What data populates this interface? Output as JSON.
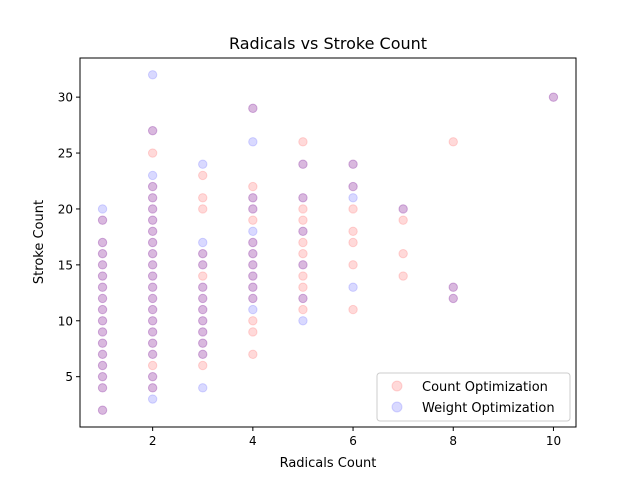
{
  "chart_data": {
    "type": "scatter",
    "title": "Radicals vs Stroke Count",
    "xlabel": "Radicals Count",
    "ylabel": "Stroke Count",
    "xlim": [
      0.55,
      10.45
    ],
    "ylim": [
      0.5,
      33.5
    ],
    "xticks": [
      2,
      4,
      6,
      8,
      10
    ],
    "yticks": [
      5,
      10,
      15,
      20,
      25,
      30
    ],
    "grid": false,
    "legend_position": "lower-right",
    "series": [
      {
        "name": "Count Optimization",
        "color": "#ff0000",
        "alpha": 0.15,
        "points": [
          [
            1,
            2
          ],
          [
            1,
            4
          ],
          [
            1,
            5
          ],
          [
            1,
            6
          ],
          [
            1,
            7
          ],
          [
            1,
            8
          ],
          [
            1,
            9
          ],
          [
            1,
            10
          ],
          [
            1,
            11
          ],
          [
            1,
            12
          ],
          [
            1,
            13
          ],
          [
            1,
            14
          ],
          [
            1,
            15
          ],
          [
            1,
            16
          ],
          [
            1,
            17
          ],
          [
            1,
            19
          ],
          [
            2,
            4
          ],
          [
            2,
            5
          ],
          [
            2,
            6
          ],
          [
            2,
            7
          ],
          [
            2,
            8
          ],
          [
            2,
            9
          ],
          [
            2,
            10
          ],
          [
            2,
            11
          ],
          [
            2,
            12
          ],
          [
            2,
            13
          ],
          [
            2,
            14
          ],
          [
            2,
            15
          ],
          [
            2,
            16
          ],
          [
            2,
            17
          ],
          [
            2,
            18
          ],
          [
            2,
            19
          ],
          [
            2,
            20
          ],
          [
            2,
            21
          ],
          [
            2,
            22
          ],
          [
            2,
            25
          ],
          [
            2,
            27
          ],
          [
            3,
            6
          ],
          [
            3,
            7
          ],
          [
            3,
            8
          ],
          [
            3,
            9
          ],
          [
            3,
            10
          ],
          [
            3,
            11
          ],
          [
            3,
            12
          ],
          [
            3,
            13
          ],
          [
            3,
            14
          ],
          [
            3,
            15
          ],
          [
            3,
            16
          ],
          [
            3,
            20
          ],
          [
            3,
            21
          ],
          [
            3,
            23
          ],
          [
            4,
            7
          ],
          [
            4,
            9
          ],
          [
            4,
            10
          ],
          [
            4,
            12
          ],
          [
            4,
            13
          ],
          [
            4,
            14
          ],
          [
            4,
            15
          ],
          [
            4,
            16
          ],
          [
            4,
            17
          ],
          [
            4,
            19
          ],
          [
            4,
            20
          ],
          [
            4,
            21
          ],
          [
            4,
            22
          ],
          [
            4,
            29
          ],
          [
            5,
            11
          ],
          [
            5,
            12
          ],
          [
            5,
            13
          ],
          [
            5,
            14
          ],
          [
            5,
            15
          ],
          [
            5,
            16
          ],
          [
            5,
            17
          ],
          [
            5,
            18
          ],
          [
            5,
            19
          ],
          [
            5,
            20
          ],
          [
            5,
            21
          ],
          [
            5,
            24
          ],
          [
            5,
            26
          ],
          [
            6,
            11
          ],
          [
            6,
            15
          ],
          [
            6,
            17
          ],
          [
            6,
            18
          ],
          [
            6,
            20
          ],
          [
            6,
            22
          ],
          [
            6,
            24
          ],
          [
            7,
            14
          ],
          [
            7,
            16
          ],
          [
            7,
            19
          ],
          [
            7,
            20
          ],
          [
            8,
            12
          ],
          [
            8,
            13
          ],
          [
            8,
            26
          ],
          [
            10,
            30
          ]
        ]
      },
      {
        "name": "Weight Optimization",
        "color": "#0000ff",
        "alpha": 0.15,
        "points": [
          [
            1,
            2
          ],
          [
            1,
            4
          ],
          [
            1,
            5
          ],
          [
            1,
            6
          ],
          [
            1,
            7
          ],
          [
            1,
            8
          ],
          [
            1,
            9
          ],
          [
            1,
            10
          ],
          [
            1,
            11
          ],
          [
            1,
            12
          ],
          [
            1,
            13
          ],
          [
            1,
            14
          ],
          [
            1,
            15
          ],
          [
            1,
            16
          ],
          [
            1,
            17
          ],
          [
            1,
            19
          ],
          [
            1,
            20
          ],
          [
            2,
            3
          ],
          [
            2,
            4
          ],
          [
            2,
            5
          ],
          [
            2,
            7
          ],
          [
            2,
            8
          ],
          [
            2,
            9
          ],
          [
            2,
            10
          ],
          [
            2,
            11
          ],
          [
            2,
            12
          ],
          [
            2,
            13
          ],
          [
            2,
            14
          ],
          [
            2,
            15
          ],
          [
            2,
            16
          ],
          [
            2,
            17
          ],
          [
            2,
            18
          ],
          [
            2,
            19
          ],
          [
            2,
            20
          ],
          [
            2,
            21
          ],
          [
            2,
            22
          ],
          [
            2,
            23
          ],
          [
            2,
            27
          ],
          [
            2,
            32
          ],
          [
            3,
            4
          ],
          [
            3,
            7
          ],
          [
            3,
            8
          ],
          [
            3,
            9
          ],
          [
            3,
            10
          ],
          [
            3,
            11
          ],
          [
            3,
            12
          ],
          [
            3,
            13
          ],
          [
            3,
            15
          ],
          [
            3,
            16
          ],
          [
            3,
            17
          ],
          [
            3,
            24
          ],
          [
            4,
            11
          ],
          [
            4,
            12
          ],
          [
            4,
            13
          ],
          [
            4,
            14
          ],
          [
            4,
            15
          ],
          [
            4,
            16
          ],
          [
            4,
            17
          ],
          [
            4,
            18
          ],
          [
            4,
            20
          ],
          [
            4,
            21
          ],
          [
            4,
            26
          ],
          [
            4,
            29
          ],
          [
            5,
            10
          ],
          [
            5,
            12
          ],
          [
            5,
            15
          ],
          [
            5,
            18
          ],
          [
            5,
            21
          ],
          [
            5,
            24
          ],
          [
            6,
            13
          ],
          [
            6,
            21
          ],
          [
            6,
            22
          ],
          [
            6,
            24
          ],
          [
            7,
            20
          ],
          [
            8,
            12
          ],
          [
            8,
            13
          ],
          [
            10,
            30
          ]
        ]
      }
    ]
  }
}
